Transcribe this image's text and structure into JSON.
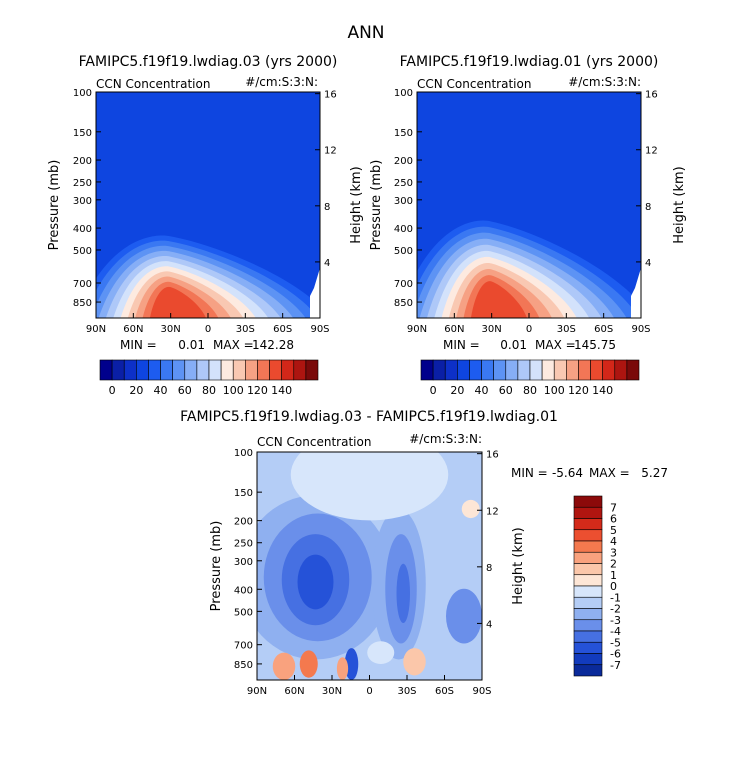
{
  "figure_title": "ANN",
  "pressure_levels": [
    100,
    150,
    200,
    250,
    300,
    400,
    500,
    700,
    850
  ],
  "height_ticks": [
    4,
    8,
    12,
    16
  ],
  "lat_ticks": [
    "90N",
    "60N",
    "30N",
    "0",
    "30S",
    "60S",
    "90S"
  ],
  "chart_data": [
    {
      "type": "contour",
      "id": "top-left",
      "title": "FAMIPC5.f19f19.lwdiag.03 (yrs 2000)",
      "variable": "CCN Concentration",
      "units": "#/cm:S:3:N:",
      "ylabel": "Pressure (mb)",
      "y2label": "Height (km)",
      "ylim": [
        1000,
        100
      ],
      "xlim": [
        "90N",
        "90S"
      ],
      "min_label": "MIN =",
      "min_value": "0.01",
      "max_label": "MAX =",
      "max_value": "142.28",
      "peak_lat": 30,
      "peak_height": 0.11,
      "peak_width": 40,
      "colorbar_ticks": [
        "0",
        "20",
        "40",
        "60",
        "80",
        "100",
        "120",
        "140"
      ],
      "colorbar_colors": [
        "#00008c",
        "#0a1fa6",
        "#0d30c8",
        "#0e45e0",
        "#1d5cf0",
        "#3a78f2",
        "#5d93f4",
        "#86aef6",
        "#aec8f8",
        "#d3e2fb",
        "#fdeae0",
        "#f9c8b2",
        "#f6a184",
        "#f27656",
        "#ea4a2e",
        "#d32719",
        "#ad1510",
        "#7a0a0a"
      ]
    },
    {
      "type": "contour",
      "id": "top-right",
      "title": "FAMIPC5.f19f19.lwdiag.01 (yrs 2000)",
      "variable": "CCN Concentration",
      "units": "#/cm:S:3:N:",
      "ylabel": "Pressure (mb)",
      "y2label": "Height (km)",
      "ylim": [
        1000,
        100
      ],
      "xlim": [
        "90N",
        "90S"
      ],
      "min_label": "MIN =",
      "min_value": "0.01",
      "max_label": "MAX =",
      "max_value": "145.75",
      "peak_lat": 30,
      "peak_height": 0.13,
      "peak_width": 40,
      "colorbar_ticks": [
        "0",
        "20",
        "40",
        "60",
        "80",
        "100",
        "120",
        "140"
      ],
      "colorbar_colors": [
        "#00008c",
        "#0a1fa6",
        "#0d30c8",
        "#0e45e0",
        "#1d5cf0",
        "#3a78f2",
        "#5d93f4",
        "#86aef6",
        "#aec8f8",
        "#d3e2fb",
        "#fdeae0",
        "#f9c8b2",
        "#f6a184",
        "#f27656",
        "#ea4a2e",
        "#d32719",
        "#ad1510",
        "#7a0a0a"
      ]
    },
    {
      "type": "contour",
      "id": "difference",
      "title": "FAMIPC5.f19f19.lwdiag.03 - FAMIPC5.f19f19.lwdiag.01",
      "variable": "CCN Concentration",
      "units": "#/cm:S:3:N:",
      "ylabel": "Pressure (mb)",
      "y2label": "Height (km)",
      "ylim": [
        1000,
        100
      ],
      "xlim": [
        "90N",
        "90S"
      ],
      "min_label": "MIN =",
      "min_value": "-5.64",
      "max_label": "MAX =",
      "max_value": "5.27",
      "colorbar_ticks": [
        "7",
        "6",
        "5",
        "4",
        "3",
        "2",
        "1",
        "0",
        "-1",
        "-2",
        "-3",
        "-4",
        "-5",
        "-6",
        "-7"
      ],
      "colorbar_colors": [
        "#8c0a0a",
        "#b01510",
        "#d42a1a",
        "#ec4f30",
        "#f4794e",
        "#f9a27e",
        "#fbc7aa",
        "#fde6d6",
        "#d7e6fb",
        "#b4cdf6",
        "#8fb0f0",
        "#6a8fea",
        "#4670e2",
        "#2552d8",
        "#123bbd",
        "#0a2a9a"
      ]
    }
  ]
}
